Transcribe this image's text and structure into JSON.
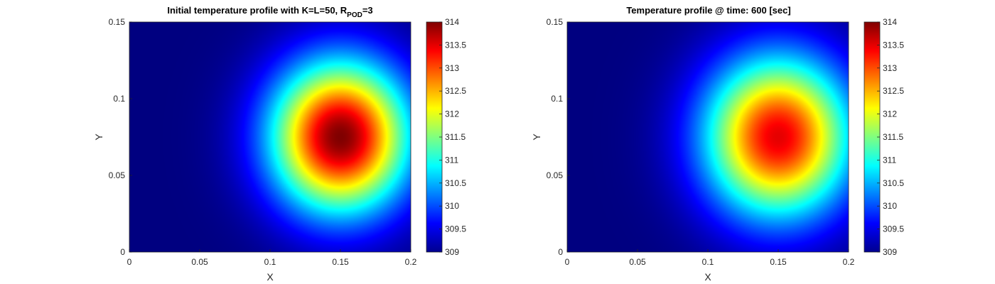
{
  "chart_data": [
    {
      "type": "heatmap",
      "title_main": "Initial temperature profile with K=L=50, R",
      "title_sub": "POD",
      "title_tail": "=3",
      "xlabel": "X",
      "ylabel": "Y",
      "xlim": [
        0,
        0.2
      ],
      "ylim": [
        0,
        0.15
      ],
      "xticks": [
        "0",
        "0.05",
        "0.1",
        "0.15",
        "0.2"
      ],
      "yticks": [
        "0",
        "0.05",
        "0.1",
        "0.15"
      ],
      "colorbar_ticks": [
        "309",
        "309.5",
        "310",
        "310.5",
        "311",
        "311.5",
        "312",
        "312.5",
        "313",
        "313.5",
        "314"
      ],
      "clim": [
        309,
        314
      ],
      "colormap": "jet",
      "field": {
        "center_x": 0.15,
        "center_y": 0.075,
        "base": 309,
        "peak": 314,
        "sigma": 0.034
      }
    },
    {
      "type": "heatmap",
      "title_main": "Temperature profile @ time: 600 [sec]",
      "xlabel": "X",
      "ylabel": "Y",
      "xlim": [
        0,
        0.2
      ],
      "ylim": [
        0,
        0.15
      ],
      "xticks": [
        "0",
        "0.05",
        "0.1",
        "0.15",
        "0.2"
      ],
      "yticks": [
        "0",
        "0.05",
        "0.1",
        "0.15"
      ],
      "colorbar_ticks": [
        "309",
        "309.5",
        "310",
        "310.5",
        "311",
        "311.5",
        "312",
        "312.5",
        "313",
        "313.5",
        "314"
      ],
      "clim": [
        309,
        314
      ],
      "colormap": "jet",
      "field": {
        "center_x": 0.15,
        "center_y": 0.075,
        "base": 309,
        "peak": 313.5,
        "sigma": 0.036
      }
    }
  ]
}
